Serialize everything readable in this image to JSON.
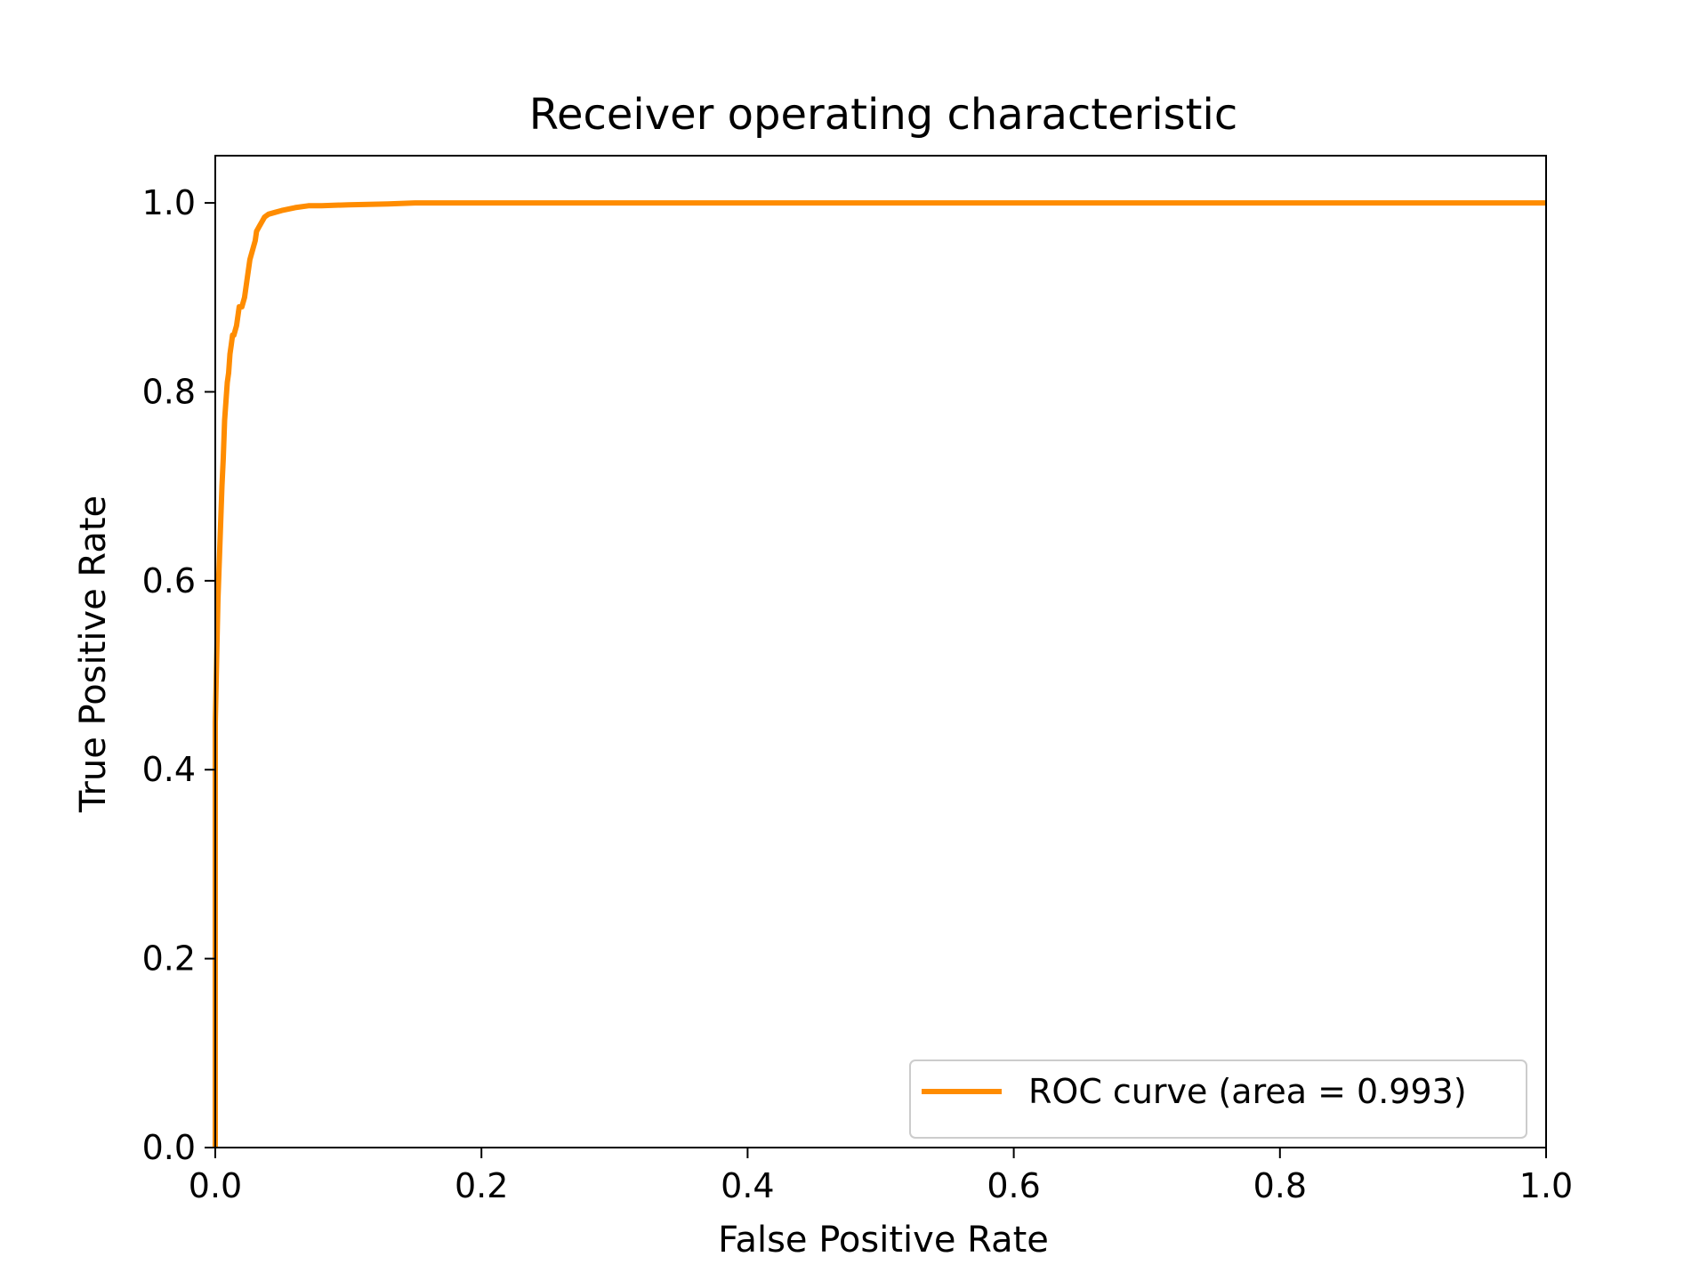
{
  "chart_data": {
    "type": "line",
    "title": "Receiver operating characteristic",
    "xlabel": "False Positive Rate",
    "ylabel": "True Positive Rate",
    "xlim": [
      0.0,
      1.0
    ],
    "ylim": [
      0.0,
      1.05
    ],
    "xticks": [
      "0.0",
      "0.2",
      "0.4",
      "0.6",
      "0.8",
      "1.0"
    ],
    "yticks": [
      "0.0",
      "0.2",
      "0.4",
      "0.6",
      "0.8",
      "1.0"
    ],
    "grid": false,
    "legend_position": "lower right",
    "series": [
      {
        "name": "ROC curve (area = 0.993)",
        "color": "#ff8c00",
        "x": [
          0.0,
          0.0,
          0.002,
          0.003,
          0.004,
          0.005,
          0.006,
          0.007,
          0.008,
          0.009,
          0.01,
          0.011,
          0.012,
          0.013,
          0.014,
          0.016,
          0.017,
          0.018,
          0.02,
          0.022,
          0.024,
          0.025,
          0.026,
          0.028,
          0.03,
          0.031,
          0.033,
          0.035,
          0.037,
          0.04,
          0.045,
          0.05,
          0.06,
          0.07,
          0.08,
          0.1,
          0.13,
          0.15,
          0.2,
          0.3,
          0.5,
          0.7,
          1.0
        ],
        "y": [
          0.0,
          0.45,
          0.58,
          0.62,
          0.66,
          0.7,
          0.73,
          0.77,
          0.79,
          0.81,
          0.82,
          0.84,
          0.85,
          0.86,
          0.86,
          0.87,
          0.88,
          0.89,
          0.89,
          0.9,
          0.92,
          0.93,
          0.94,
          0.95,
          0.96,
          0.97,
          0.975,
          0.98,
          0.985,
          0.988,
          0.99,
          0.992,
          0.995,
          0.997,
          0.997,
          0.998,
          0.999,
          1.0,
          1.0,
          1.0,
          1.0,
          1.0,
          1.0
        ]
      }
    ]
  }
}
